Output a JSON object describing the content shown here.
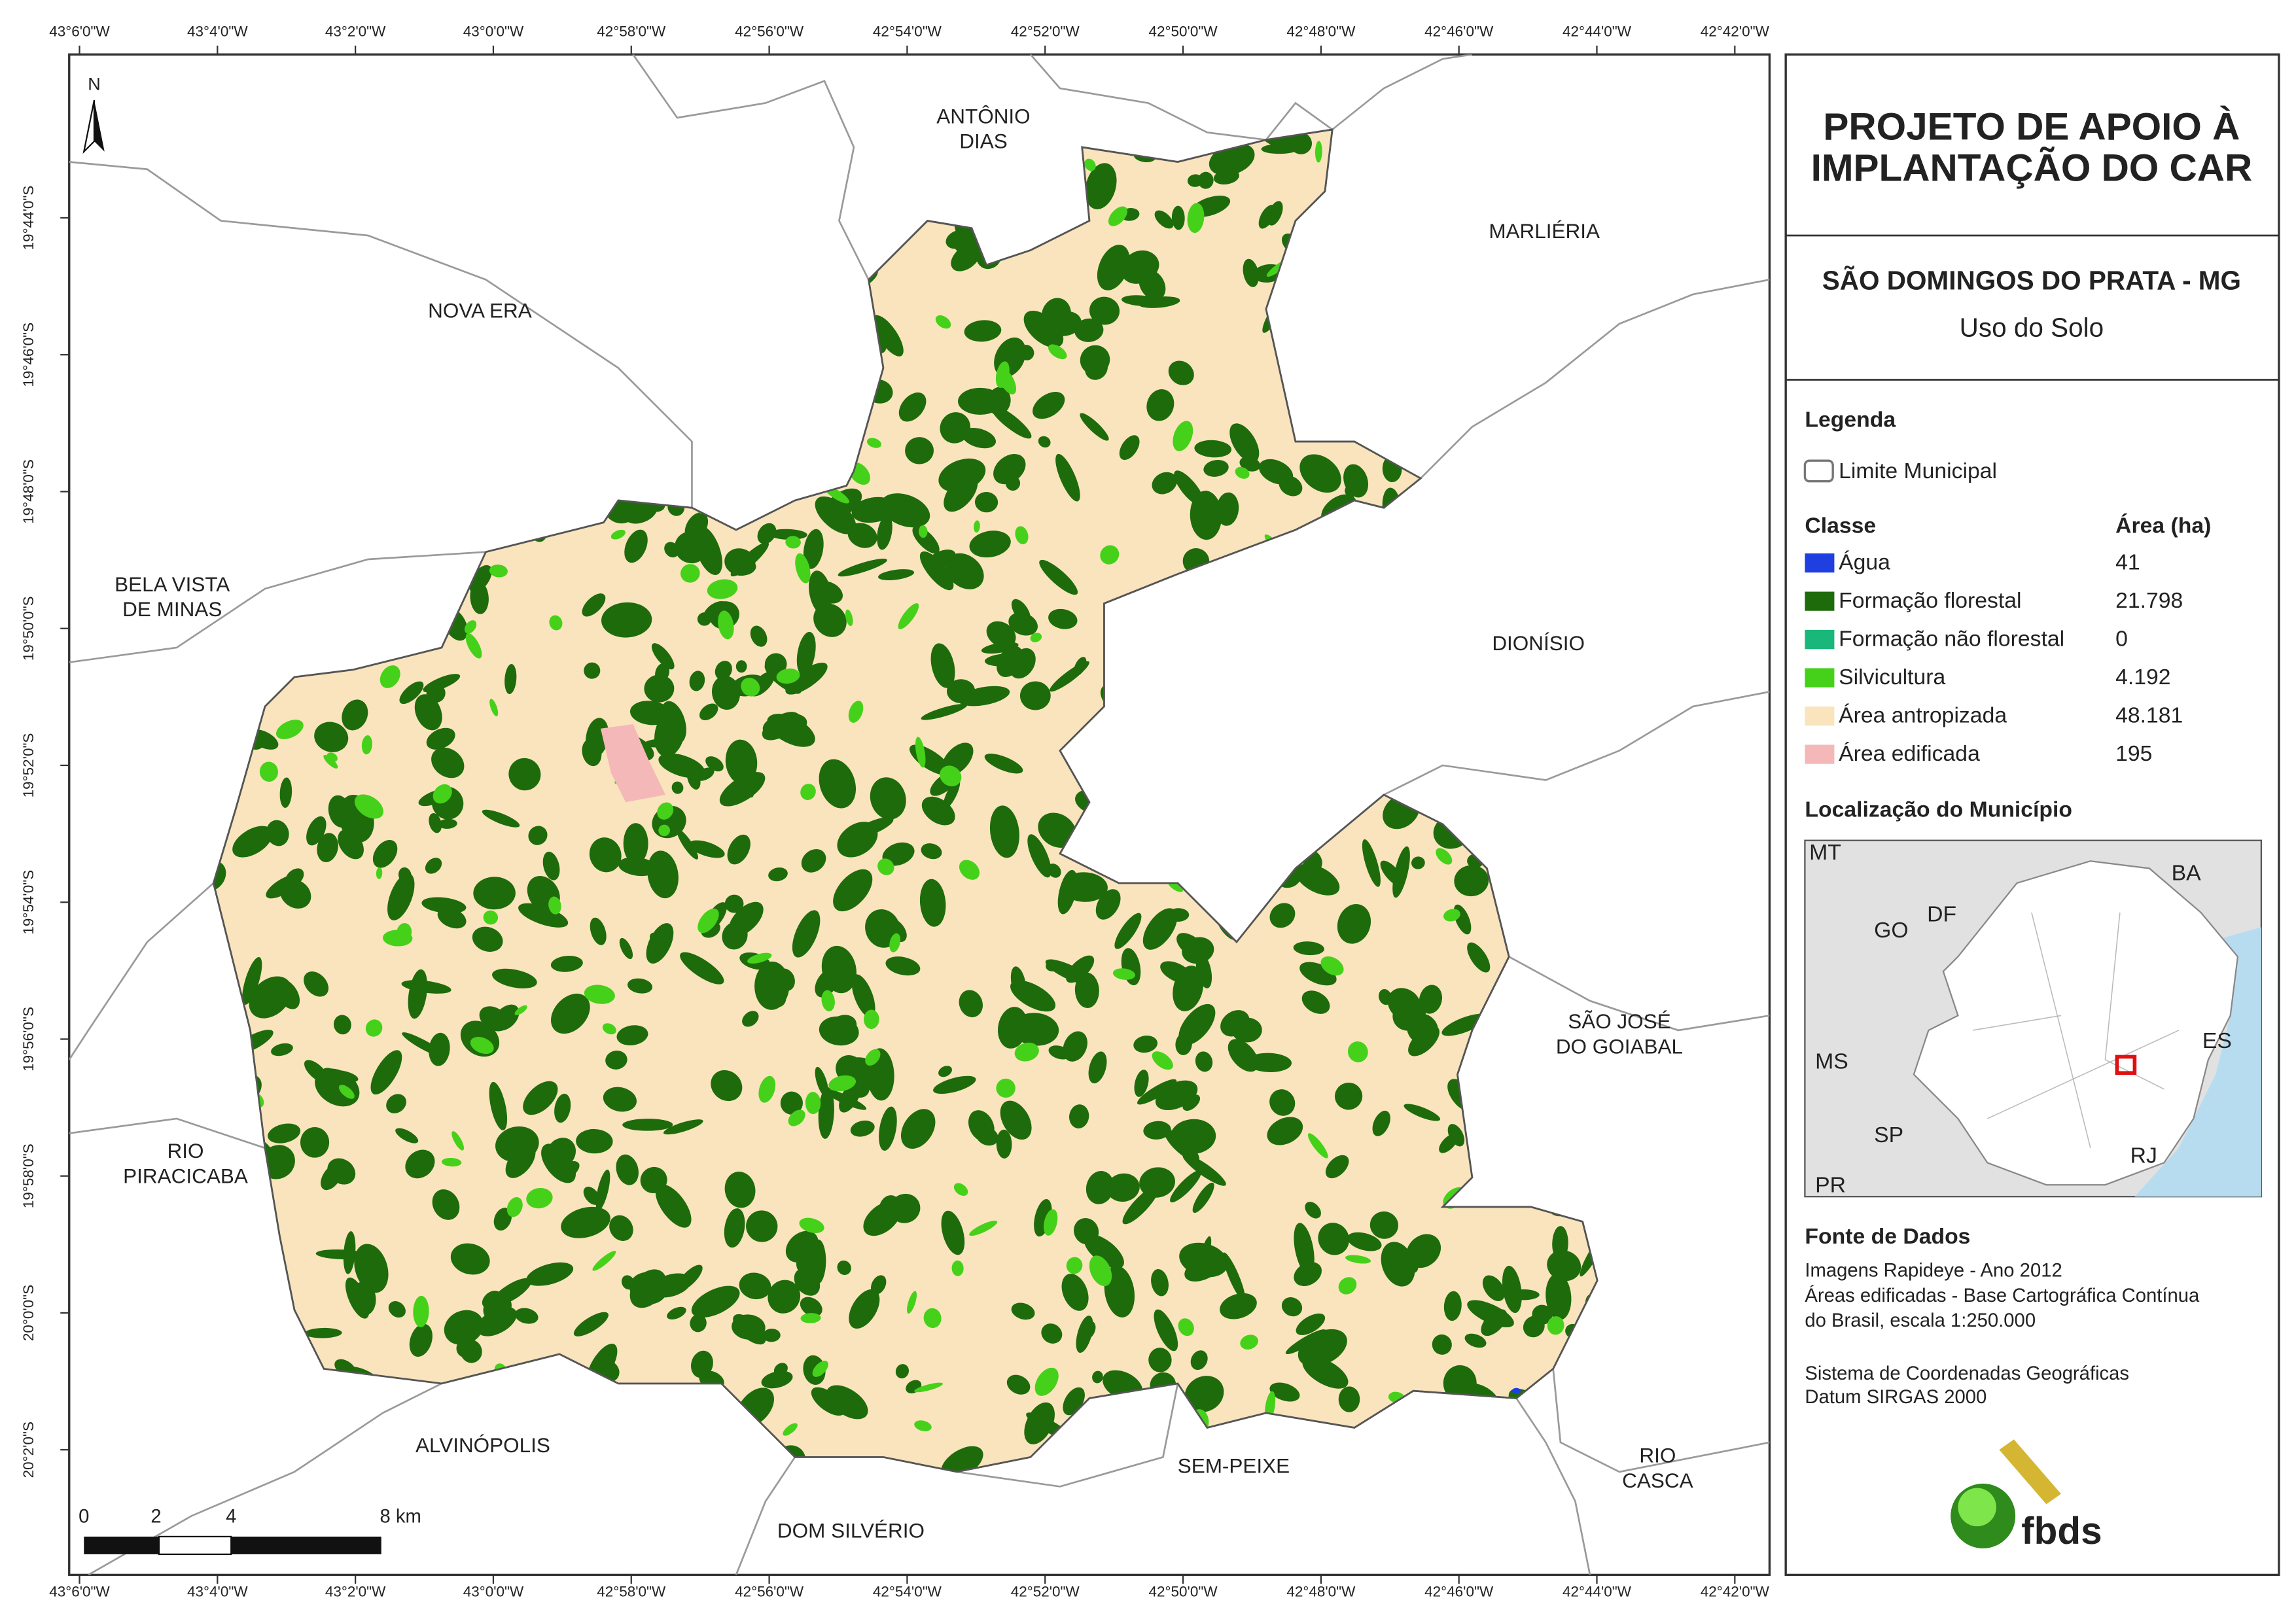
{
  "panel": {
    "title_lines": [
      "PROJETO DE APOIO À",
      "IMPLANTAÇÃO DO CAR"
    ],
    "municipality": "SÃO DOMINGOS DO PRATA - MG",
    "theme": "Uso do Solo"
  },
  "legend": {
    "title": "Legenda",
    "boundary": "Limite Municipal",
    "class_header": "Classe",
    "area_header": "Área (ha)",
    "items": [
      {
        "label": "Água",
        "area": "41",
        "color": "#1f3fe0"
      },
      {
        "label": "Formação florestal",
        "area": "21.798",
        "color": "#1e6b0c"
      },
      {
        "label": "Formação não florestal",
        "area": "0",
        "color": "#1ab77a"
      },
      {
        "label": "Silvicultura",
        "area": "4.192",
        "color": "#45d11a"
      },
      {
        "label": "Área antropizada",
        "area": "48.181",
        "color": "#f9e4bd"
      },
      {
        "label": "Área edificada",
        "area": "195",
        "color": "#f5b8b8"
      }
    ]
  },
  "location": {
    "title": "Localização do Município",
    "labels": [
      "MT",
      "BA",
      "DF",
      "GO",
      "MS",
      "ES",
      "SP",
      "RJ",
      "PR"
    ]
  },
  "sources": {
    "title": "Fonte de Dados",
    "lines": [
      "Imagens Rapideye - Ano 2012",
      "Áreas edificadas - Base Cartográfica Contínua",
      "do Brasil, escala 1:250.000",
      "Sistema de Coordenadas Geográficas",
      "Datum SIRGAS 2000"
    ]
  },
  "map": {
    "north": "N",
    "longitude_labels": [
      "43°6'0\"W",
      "43°4'0\"W",
      "43°2'0\"W",
      "43°0'0\"W",
      "42°58'0\"W",
      "42°56'0\"W",
      "42°54'0\"W",
      "42°52'0\"W",
      "42°50'0\"W",
      "42°48'0\"W",
      "42°46'0\"W",
      "42°44'0\"W",
      "42°42'0\"W"
    ],
    "latitude_labels": [
      "19°44'0\"S",
      "19°46'0\"S",
      "19°48'0\"S",
      "19°50'0\"S",
      "19°52'0\"S",
      "19°54'0\"S",
      "19°56'0\"S",
      "19°58'0\"S",
      "20°0'0\"S",
      "20°2'0\"S"
    ],
    "places": [
      [
        "ANTÔNIO",
        "DIAS"
      ],
      [
        "MARLIÉRIA"
      ],
      [
        "NOVA ERA"
      ],
      [
        "BELA VISTA",
        "DE MINAS"
      ],
      [
        "DIONÍSIO"
      ],
      [
        "SÃO JOSÉ",
        "DO GOIABAL"
      ],
      [
        "RIO",
        "PIRACICABA"
      ],
      [
        "ALVINÓPOLIS"
      ],
      [
        "SEM-PEIXE"
      ],
      [
        "DOM SILVÉRIO"
      ],
      [
        "RIO",
        "CASCA"
      ]
    ],
    "scale_labels": [
      "0",
      "2",
      "4",
      "8 km"
    ]
  },
  "logo": "fbds"
}
